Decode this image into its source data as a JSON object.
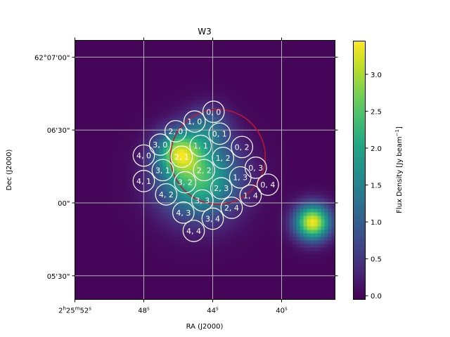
{
  "chart_data": {
    "type": "heatmap",
    "title": "W3",
    "xlabel": "RA (J2000)",
    "ylabel": "Dec (J2000)",
    "colorbar": {
      "label": "Flux Density [Jy beam$^{-1}$]",
      "label_parts": [
        "Flux Density [Jy beam",
        "−1",
        "]"
      ],
      "range": [
        -0.05,
        3.45
      ],
      "ticks": [
        "0.0",
        "0.5",
        "1.0",
        "1.5",
        "2.0",
        "2.5",
        "3.0"
      ],
      "tick_values": [
        0,
        0.5,
        1.0,
        1.5,
        2.0,
        2.5,
        3.0
      ],
      "colormap": "viridis"
    },
    "x_ticks": [
      {
        "value_s": 52,
        "label": "2h25m52s",
        "parts": [
          "2",
          "h",
          "25",
          "m",
          "52",
          "s"
        ]
      },
      {
        "value_s": 48,
        "label": "48s",
        "parts": [
          "48",
          "s"
        ]
      },
      {
        "value_s": 44,
        "label": "44s",
        "parts": [
          "44",
          "s"
        ]
      },
      {
        "value_s": 40,
        "label": "40s",
        "parts": [
          "40",
          "s"
        ]
      }
    ],
    "y_ticks": [
      {
        "value_arcsec": 420,
        "label": "62°07'00\""
      },
      {
        "value_arcsec": 390,
        "label": "06'30\""
      },
      {
        "value_arcsec": 360,
        "label": "00\""
      },
      {
        "value_arcsec": 330,
        "label": "05'30\""
      }
    ],
    "ra_range_s": [
      52,
      37
    ],
    "dec_range_arcsec": [
      321,
      427
    ],
    "grid": true,
    "sources": [
      {
        "ra_s": 44.8,
        "dec_arcsec": 370,
        "flux": 2.4,
        "sigma_arcsec": 11
      },
      {
        "ra_s": 46.0,
        "dec_arcsec": 381,
        "flux": 2.2,
        "sigma_arcsec": 6
      },
      {
        "ra_s": 44.3,
        "dec_arcsec": 391,
        "flux": 1.0,
        "sigma_arcsec": 6
      },
      {
        "ra_s": 38.2,
        "dec_arcsec": 352,
        "flux": 3.4,
        "sigma_arcsec": 5
      }
    ],
    "red_circle": {
      "ra_s": 43.7,
      "dec_arcsec": 379,
      "radius_arcsec": 19.5,
      "color": "#c0172b"
    },
    "beams": [
      {
        "label": "0, 0",
        "ra_s": 43.95,
        "dec_arcsec": 397.5
      },
      {
        "label": "1, 0",
        "ra_s": 45.05,
        "dec_arcsec": 393.5
      },
      {
        "label": "2, 0",
        "ra_s": 46.15,
        "dec_arcsec": 389.5
      },
      {
        "label": "3, 0",
        "ra_s": 47.05,
        "dec_arcsec": 384.0
      },
      {
        "label": "4, 0",
        "ra_s": 48.0,
        "dec_arcsec": 379.5
      },
      {
        "label": "0, 1",
        "ra_s": 43.6,
        "dec_arcsec": 388.5
      },
      {
        "label": "1, 1",
        "ra_s": 44.7,
        "dec_arcsec": 383.5
      },
      {
        "label": "2, 1",
        "ra_s": 45.8,
        "dec_arcsec": 379.0
      },
      {
        "label": "3, 1",
        "ra_s": 46.9,
        "dec_arcsec": 373.5
      },
      {
        "label": "4, 1",
        "ra_s": 48.0,
        "dec_arcsec": 369.0
      },
      {
        "label": "0, 2",
        "ra_s": 42.3,
        "dec_arcsec": 383.0
      },
      {
        "label": "1, 2",
        "ra_s": 43.4,
        "dec_arcsec": 378.5
      },
      {
        "label": "2, 2",
        "ra_s": 44.5,
        "dec_arcsec": 373.5
      },
      {
        "label": "3, 2",
        "ra_s": 45.6,
        "dec_arcsec": 368.5
      },
      {
        "label": "4, 2",
        "ra_s": 46.7,
        "dec_arcsec": 363.5
      },
      {
        "label": "0, 3",
        "ra_s": 41.5,
        "dec_arcsec": 374.5
      },
      {
        "label": "1, 3",
        "ra_s": 42.4,
        "dec_arcsec": 370.5
      },
      {
        "label": "2, 3",
        "ra_s": 43.5,
        "dec_arcsec": 366.0
      },
      {
        "label": "3, 3",
        "ra_s": 44.6,
        "dec_arcsec": 361.0
      },
      {
        "label": "4, 3",
        "ra_s": 45.7,
        "dec_arcsec": 356.0
      },
      {
        "label": "0, 4",
        "ra_s": 40.8,
        "dec_arcsec": 367.5
      },
      {
        "label": "1, 4",
        "ra_s": 41.8,
        "dec_arcsec": 363.0
      },
      {
        "label": "2, 4",
        "ra_s": 42.9,
        "dec_arcsec": 358.0
      },
      {
        "label": "3, 4",
        "ra_s": 44.0,
        "dec_arcsec": 353.5
      },
      {
        "label": "4, 4",
        "ra_s": 45.1,
        "dec_arcsec": 348.5
      }
    ],
    "beam_radius_arcsec": 4.4
  }
}
